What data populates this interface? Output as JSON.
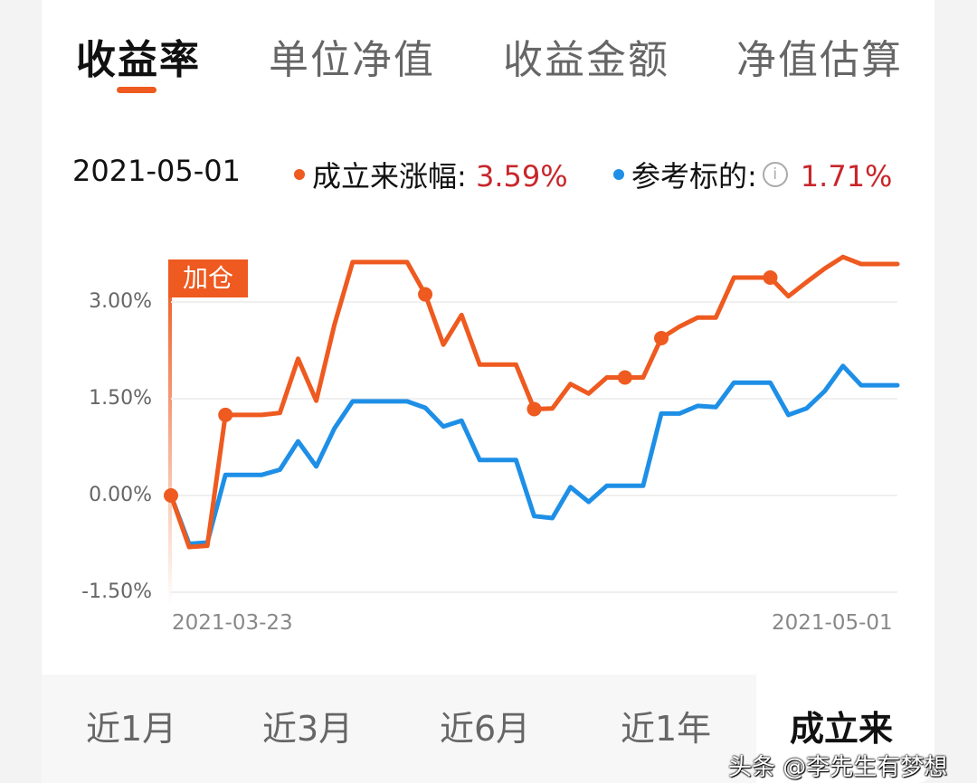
{
  "tabs": [
    {
      "label": "收益率",
      "active": true
    },
    {
      "label": "单位净值"
    },
    {
      "label": "收益金额"
    },
    {
      "label": "净值估算"
    }
  ],
  "legend": {
    "date": "2021-05-01",
    "fund_label": "成立来涨幅:",
    "fund_value": "3.59%",
    "bench_label": "参考标的:",
    "bench_value": "1.71%",
    "info_icon": "i"
  },
  "marker_label": "加仓",
  "periods": [
    {
      "label": "近1月"
    },
    {
      "label": "近3月"
    },
    {
      "label": "近6月"
    },
    {
      "label": "近1年"
    },
    {
      "label": "成立来",
      "active": true
    }
  ],
  "watermark": "头条 @李先生有梦想",
  "colors": {
    "fund": "#ee5a1f",
    "benchmark": "#1e8fe6",
    "value_red": "#c8262b"
  },
  "chart_data": {
    "type": "line",
    "y_ticks": [
      "3.00%",
      "1.50%",
      "0.00%",
      "-1.50%"
    ],
    "ylim": [
      -1.5,
      3.9
    ],
    "x_labels": [
      "2021-03-23",
      "2021-05-01"
    ],
    "grid": true,
    "series": [
      {
        "name": "成立来涨幅",
        "color": "#ee5a1f",
        "values": [
          0,
          -0.8,
          -0.78,
          1.25,
          1.25,
          1.25,
          1.28,
          2.12,
          1.47,
          2.65,
          3.62,
          3.62,
          3.62,
          3.62,
          3.12,
          2.34,
          2.8,
          2.03,
          2.03,
          2.03,
          1.34,
          1.35,
          1.73,
          1.58,
          1.83,
          1.83,
          1.83,
          2.44,
          2.62,
          2.76,
          2.76,
          3.38,
          3.38,
          3.38,
          3.09,
          3.31,
          3.52,
          3.7,
          3.59,
          3.59,
          3.59
        ],
        "buy_points": [
          0,
          3,
          14,
          20,
          25,
          27,
          33
        ]
      },
      {
        "name": "参考标的",
        "color": "#1e8fe6",
        "values": [
          0,
          -0.75,
          -0.73,
          0.32,
          0.32,
          0.32,
          0.4,
          0.84,
          0.45,
          1.04,
          1.46,
          1.46,
          1.46,
          1.46,
          1.36,
          1.07,
          1.16,
          0.55,
          0.55,
          0.55,
          -0.32,
          -0.35,
          0.13,
          -0.1,
          0.15,
          0.15,
          0.15,
          1.27,
          1.27,
          1.39,
          1.37,
          1.75,
          1.75,
          1.75,
          1.25,
          1.35,
          1.62,
          2.01,
          1.71,
          1.71,
          1.71
        ]
      }
    ]
  }
}
